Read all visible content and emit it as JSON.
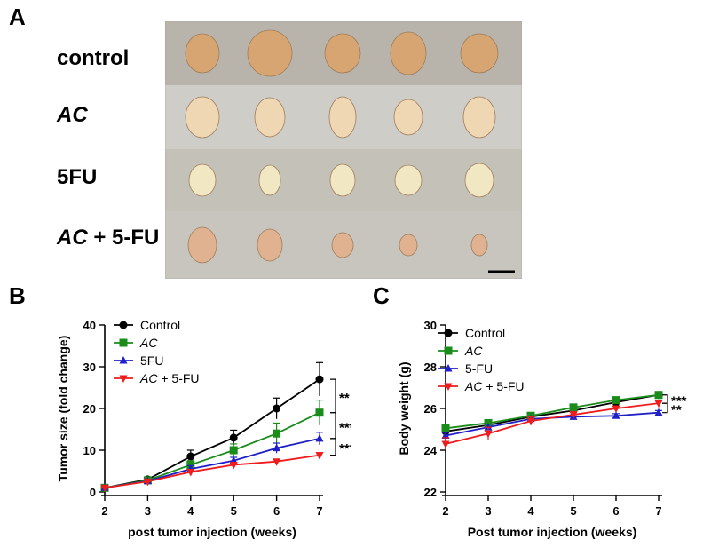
{
  "panel_a": {
    "letter": "A",
    "row_labels": [
      {
        "plain": "control",
        "italic": "",
        "rest": ""
      },
      {
        "plain": "",
        "italic": "AC",
        "rest": ""
      },
      {
        "plain": "5FU",
        "italic": "",
        "rest": ""
      },
      {
        "plain": "",
        "italic": "AC",
        "rest": " + 5-FU"
      }
    ],
    "tumor_colors": [
      "#d9a56e",
      "#f1d8b4",
      "#f4e9c4",
      "#e2b18e"
    ],
    "row_backgrounds": [
      "#b9b4ab",
      "#cfcdc7",
      "#c4c2b8",
      "#c8c5be"
    ]
  },
  "chart_data": [
    {
      "panel": "B",
      "type": "line",
      "xlabel": "post tumor injection (weeks)",
      "ylabel": "Tumor size (fold change)",
      "x": [
        2,
        3,
        4,
        5,
        6,
        7
      ],
      "xlim": [
        2,
        7
      ],
      "ylim": [
        0,
        40
      ],
      "yticks": [
        0,
        10,
        20,
        30,
        40
      ],
      "legend_position": "top-left",
      "series": [
        {
          "name": "Control",
          "name_italic": "",
          "name_rest": "Control",
          "color": "#000000",
          "marker": "circle",
          "values": [
            1,
            3,
            8.5,
            13,
            20,
            27
          ],
          "errors": [
            0.2,
            0.3,
            1.5,
            1.8,
            2.5,
            4
          ]
        },
        {
          "name": "AC",
          "name_italic": "AC",
          "name_rest": "",
          "color": "#1a8c1a",
          "marker": "square",
          "values": [
            1,
            2.8,
            6.5,
            10,
            14,
            19
          ],
          "errors": [
            0.2,
            0.3,
            1,
            1.5,
            2.5,
            3
          ]
        },
        {
          "name": "5FU",
          "name_italic": "",
          "name_rest": "5FU",
          "color": "#1f1fc8",
          "marker": "triangle-up",
          "values": [
            1,
            2.6,
            5.5,
            7.5,
            10.5,
            12.8
          ],
          "errors": [
            0.2,
            0.3,
            0.8,
            0.8,
            1.2,
            1.5
          ]
        },
        {
          "name": "AC + 5-FU",
          "name_italic": "AC",
          "name_rest": " + 5-FU",
          "color": "#ee1c1c",
          "marker": "triangle-down",
          "values": [
            1,
            2.5,
            4.8,
            6.5,
            7.3,
            8.8
          ],
          "errors": [
            0.2,
            0.2,
            0.5,
            0.5,
            0.5,
            0.6
          ]
        }
      ],
      "significance": [
        {
          "text": "**",
          "between": [
            "Control",
            "AC"
          ]
        },
        {
          "text": "***",
          "between": [
            "AC",
            "5FU"
          ]
        },
        {
          "text": "***",
          "between": [
            "5FU",
            "AC + 5-FU"
          ]
        }
      ]
    },
    {
      "panel": "C",
      "type": "line",
      "xlabel": "Post tumor injection (weeks)",
      "ylabel": "Body weight (g)",
      "x": [
        2,
        3,
        4,
        5,
        6,
        7
      ],
      "xlim": [
        2,
        7
      ],
      "ylim": [
        22,
        30
      ],
      "yticks": [
        22,
        24,
        26,
        28,
        30
      ],
      "legend_position": "top-left",
      "series": [
        {
          "name": "Control",
          "name_italic": "",
          "name_rest": "Control",
          "color": "#000000",
          "marker": "circle",
          "values": [
            24.9,
            25.2,
            25.6,
            25.9,
            26.3,
            26.65
          ],
          "errors": [
            0.15,
            0.15,
            0.1,
            0.1,
            0.1,
            0.1
          ]
        },
        {
          "name": "AC",
          "name_italic": "AC",
          "name_rest": "",
          "color": "#1a8c1a",
          "marker": "square",
          "values": [
            25.05,
            25.3,
            25.65,
            26.05,
            26.4,
            26.65
          ],
          "errors": [
            0.1,
            0.1,
            0.1,
            0.1,
            0.1,
            0.1
          ]
        },
        {
          "name": "5-FU",
          "name_italic": "",
          "name_rest": "5-FU",
          "color": "#1f1fc8",
          "marker": "triangle-up",
          "values": [
            24.7,
            25.1,
            25.5,
            25.6,
            25.65,
            25.8
          ],
          "errors": [
            0.15,
            0.15,
            0.1,
            0.1,
            0.1,
            0.1
          ]
        },
        {
          "name": "AC + 5-FU",
          "name_italic": "AC",
          "name_rest": " + 5-FU",
          "color": "#ee1c1c",
          "marker": "triangle-down",
          "values": [
            24.3,
            24.8,
            25.4,
            25.7,
            26.0,
            26.25
          ],
          "errors": [
            0.3,
            0.3,
            0.2,
            0.15,
            0.1,
            0.1
          ]
        }
      ],
      "significance": [
        {
          "text": "***",
          "between": [
            "AC",
            "AC + 5-FU"
          ]
        },
        {
          "text": "**",
          "between": [
            "AC + 5-FU",
            "5-FU"
          ]
        }
      ]
    }
  ]
}
